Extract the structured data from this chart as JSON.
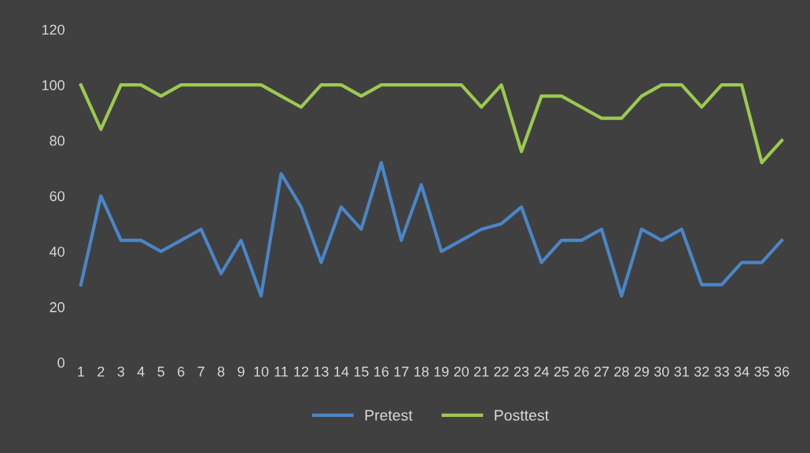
{
  "chart_data": {
    "type": "line",
    "categories": [
      "1",
      "2",
      "3",
      "4",
      "5",
      "6",
      "7",
      "8",
      "9",
      "10",
      "11",
      "12",
      "13",
      "14",
      "15",
      "16",
      "17",
      "18",
      "19",
      "20",
      "21",
      "22",
      "23",
      "24",
      "25",
      "26",
      "27",
      "28",
      "29",
      "30",
      "31",
      "32",
      "33",
      "34",
      "35",
      "36"
    ],
    "series": [
      {
        "name": "Pretest",
        "color": "#4a86c8",
        "values": [
          28,
          60,
          44,
          44,
          40,
          44,
          48,
          32,
          44,
          24,
          68,
          56,
          36,
          56,
          48,
          72,
          44,
          64,
          40,
          44,
          48,
          50,
          56,
          36,
          44,
          44,
          48,
          24,
          48,
          44,
          48,
          28,
          28,
          36,
          36,
          44
        ]
      },
      {
        "name": "Posttest",
        "color": "#9cc94f",
        "values": [
          100,
          84,
          100,
          100,
          96,
          100,
          100,
          100,
          100,
          100,
          96,
          92,
          100,
          100,
          96,
          100,
          100,
          100,
          100,
          100,
          92,
          100,
          76,
          96,
          96,
          92,
          88,
          88,
          96,
          100,
          100,
          92,
          100,
          100,
          72,
          80
        ]
      }
    ],
    "ylim": [
      0,
      120
    ],
    "yticks": [
      0,
      20,
      40,
      60,
      80,
      100,
      120
    ],
    "grid": false,
    "legend": "bottom",
    "marker": "none",
    "line_style": "solid"
  }
}
